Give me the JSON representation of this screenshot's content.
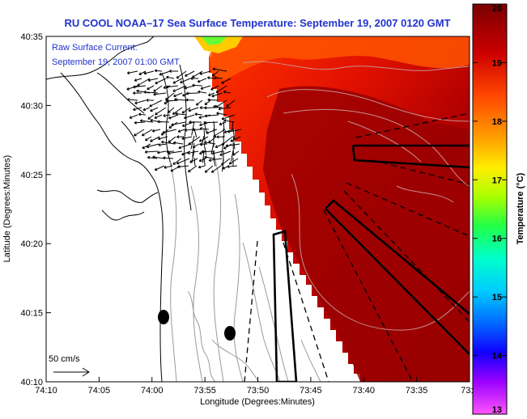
{
  "header": {
    "title": "RU COOL  NOAA–17  Sea Surface Temperature:  September 19, 2007 0120 GMT"
  },
  "annotation": {
    "line1": "Raw Surface Current:",
    "line2": "September 19, 2007 01:00 GMT"
  },
  "scale_arrow": {
    "label": "50 cm/s"
  },
  "axes": {
    "xlabel": "Longitude (Degrees:Minutes)",
    "ylabel": "Latitude (Degrees:Minutes)",
    "x_ticks": [
      "74:10",
      "74:05",
      "74:00",
      "73:55",
      "73:50",
      "73:45",
      "73:40",
      "73:35",
      "73:3"
    ],
    "y_ticks": [
      "40:35",
      "40:30",
      "40:25",
      "40:20",
      "40:15",
      "40:10"
    ]
  },
  "colorbar": {
    "label": "Temperature (°C)",
    "ticks": [
      "20",
      "19",
      "18",
      "17",
      "16",
      "15",
      "14",
      "13"
    ],
    "min": 13,
    "max": 20
  },
  "colors": {
    "title": "#2233cc",
    "annotation": "#2233cc",
    "sst_warm": "#a00000",
    "sst_hot": "#ff2200"
  }
}
